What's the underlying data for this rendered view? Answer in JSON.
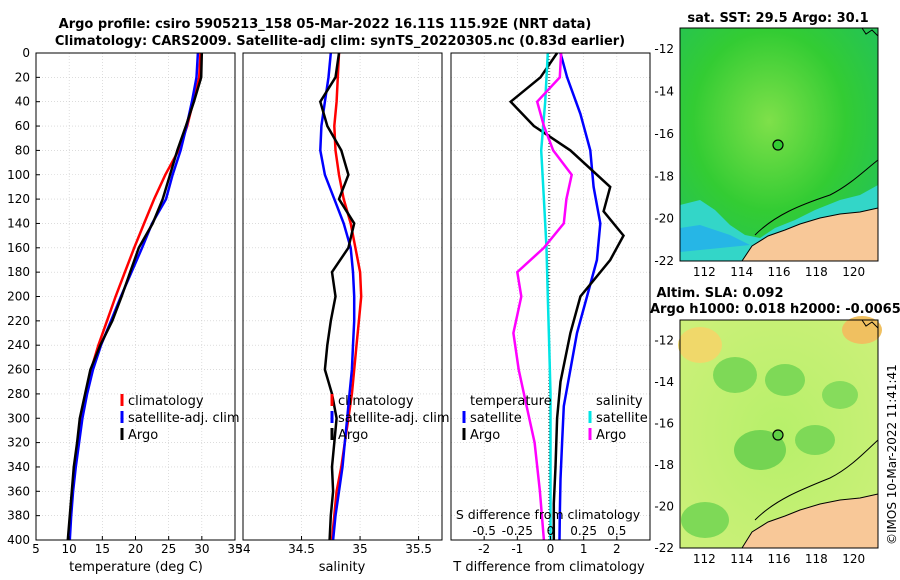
{
  "title": {
    "line1": "Argo profile: csiro 5905213_158 05-Mar-2022 16.11S 115.92E (NRT data)",
    "line2": "Climatology: CARS2009. Satellite-adj clim: synTS_20220305.nc (0.83d earlier)"
  },
  "colors": {
    "climatology": "#ff0000",
    "satellite": "#0000ff",
    "argo": "#000000",
    "sal_sat": "#00e5e5",
    "sal_argo": "#ff00ff"
  },
  "chart_data": [
    {
      "type": "line",
      "name": "temperature",
      "xlabel": "temperature (deg C)",
      "xlim": [
        5,
        35
      ],
      "ylim": [
        0,
        400
      ],
      "xticks": [
        "5",
        "10",
        "15",
        "20",
        "25",
        "30",
        "35"
      ],
      "yticks": [
        "0",
        "20",
        "40",
        "60",
        "80",
        "100",
        "120",
        "140",
        "160",
        "180",
        "200",
        "220",
        "240",
        "260",
        "280",
        "300",
        "320",
        "340",
        "360",
        "380",
        "400"
      ],
      "legend": [
        "climatology",
        "satellite-adj. clim",
        "Argo"
      ],
      "series": [
        {
          "name": "climatology",
          "color": "#ff0000",
          "points": [
            [
              29.8,
              0
            ],
            [
              29.6,
              20
            ],
            [
              28.7,
              40
            ],
            [
              27.8,
              60
            ],
            [
              26.5,
              80
            ],
            [
              24.5,
              100
            ],
            [
              22.8,
              120
            ],
            [
              21.3,
              140
            ],
            [
              19.8,
              160
            ],
            [
              18.4,
              180
            ],
            [
              17.0,
              200
            ],
            [
              15.7,
              220
            ],
            [
              14.4,
              240
            ],
            [
              13.3,
              260
            ],
            [
              12.5,
              280
            ],
            [
              11.8,
              300
            ],
            [
              11.3,
              320
            ],
            [
              10.9,
              340
            ],
            [
              10.5,
              360
            ],
            [
              10.2,
              380
            ],
            [
              9.9,
              400
            ]
          ]
        },
        {
          "name": "satellite-adj. clim",
          "color": "#0000ff",
          "points": [
            [
              29.4,
              0
            ],
            [
              29.2,
              20
            ],
            [
              28.5,
              40
            ],
            [
              27.7,
              60
            ],
            [
              26.8,
              80
            ],
            [
              25.6,
              100
            ],
            [
              24.6,
              120
            ],
            [
              22.5,
              140
            ],
            [
              21.0,
              160
            ],
            [
              19.4,
              180
            ],
            [
              17.8,
              200
            ],
            [
              16.3,
              220
            ],
            [
              14.8,
              240
            ],
            [
              13.6,
              260
            ],
            [
              12.7,
              280
            ],
            [
              12.0,
              300
            ],
            [
              11.5,
              320
            ],
            [
              11.0,
              340
            ],
            [
              10.6,
              360
            ],
            [
              10.3,
              380
            ],
            [
              10.1,
              400
            ]
          ]
        },
        {
          "name": "Argo",
          "color": "#000000",
          "points": [
            [
              30.0,
              0
            ],
            [
              29.9,
              20
            ],
            [
              28.8,
              40
            ],
            [
              27.6,
              60
            ],
            [
              26.3,
              80
            ],
            [
              25.2,
              100
            ],
            [
              24.1,
              120
            ],
            [
              22.6,
              140
            ],
            [
              20.5,
              160
            ],
            [
              19.2,
              180
            ],
            [
              17.9,
              200
            ],
            [
              16.5,
              220
            ],
            [
              14.7,
              240
            ],
            [
              13.2,
              260
            ],
            [
              12.4,
              280
            ],
            [
              11.6,
              300
            ],
            [
              11.2,
              320
            ],
            [
              10.7,
              340
            ],
            [
              10.4,
              360
            ],
            [
              10.1,
              380
            ],
            [
              9.8,
              400
            ]
          ]
        }
      ]
    },
    {
      "type": "line",
      "name": "salinity",
      "xlabel": "salinity",
      "xlim": [
        34,
        35.7
      ],
      "ylim": [
        0,
        400
      ],
      "xticks": [
        "34",
        "34.5",
        "35",
        "35.5"
      ],
      "legend": [
        "climatology",
        "satellite-adj. clim",
        "Argo"
      ],
      "series": [
        {
          "name": "climatology",
          "color": "#ff0000",
          "points": [
            [
              34.82,
              0
            ],
            [
              34.81,
              20
            ],
            [
              34.8,
              40
            ],
            [
              34.78,
              60
            ],
            [
              34.79,
              80
            ],
            [
              34.82,
              100
            ],
            [
              34.86,
              120
            ],
            [
              34.92,
              140
            ],
            [
              34.96,
              160
            ],
            [
              35.0,
              180
            ],
            [
              35.01,
              200
            ],
            [
              34.99,
              220
            ],
            [
              34.97,
              240
            ],
            [
              34.95,
              260
            ],
            [
              34.93,
              280
            ],
            [
              34.9,
              300
            ],
            [
              34.87,
              320
            ],
            [
              34.84,
              340
            ],
            [
              34.8,
              360
            ],
            [
              34.78,
              380
            ],
            [
              34.76,
              400
            ]
          ]
        },
        {
          "name": "satellite-adj. clim",
          "color": "#0000ff",
          "points": [
            [
              34.75,
              0
            ],
            [
              34.73,
              20
            ],
            [
              34.7,
              40
            ],
            [
              34.67,
              60
            ],
            [
              34.66,
              80
            ],
            [
              34.7,
              100
            ],
            [
              34.78,
              120
            ],
            [
              34.86,
              140
            ],
            [
              34.92,
              160
            ],
            [
              34.94,
              180
            ],
            [
              34.95,
              200
            ],
            [
              34.95,
              220
            ],
            [
              34.94,
              240
            ],
            [
              34.93,
              260
            ],
            [
              34.91,
              280
            ],
            [
              34.89,
              300
            ],
            [
              34.87,
              320
            ],
            [
              34.85,
              340
            ],
            [
              34.82,
              360
            ],
            [
              34.79,
              380
            ],
            [
              34.77,
              400
            ]
          ]
        },
        {
          "name": "Argo",
          "color": "#000000",
          "points": [
            [
              34.82,
              0
            ],
            [
              34.79,
              20
            ],
            [
              34.66,
              40
            ],
            [
              34.72,
              60
            ],
            [
              34.84,
              80
            ],
            [
              34.9,
              100
            ],
            [
              34.82,
              120
            ],
            [
              34.95,
              140
            ],
            [
              34.9,
              160
            ],
            [
              34.76,
              180
            ],
            [
              34.79,
              200
            ],
            [
              34.75,
              220
            ],
            [
              34.72,
              240
            ],
            [
              34.7,
              260
            ],
            [
              34.76,
              280
            ],
            [
              34.8,
              300
            ],
            [
              34.78,
              320
            ],
            [
              34.76,
              340
            ],
            [
              34.77,
              360
            ],
            [
              34.75,
              380
            ],
            [
              34.74,
              400
            ]
          ]
        }
      ]
    },
    {
      "type": "line",
      "name": "difference",
      "xlabel": "T difference from climatology",
      "xlabel_top": "S difference from climatology",
      "xlim": [
        -3,
        3
      ],
      "ylim": [
        0,
        400
      ],
      "xticks": [
        "-2",
        "-1",
        "0",
        "1",
        "2"
      ],
      "sticks": [
        "-0.5",
        "-0.25",
        "0",
        "0.25",
        "0.5"
      ],
      "legend_temperature_title": "temperature",
      "legend_salinity_title": "salinity",
      "legend_items": [
        "satellite",
        "Argo",
        "satellite",
        "Argo"
      ],
      "series": [
        {
          "name": "T satellite",
          "color": "#0000ff",
          "points": [
            [
              0.3,
              0
            ],
            [
              0.5,
              20
            ],
            [
              0.9,
              50
            ],
            [
              1.2,
              80
            ],
            [
              1.3,
              110
            ],
            [
              1.5,
              140
            ],
            [
              1.4,
              170
            ],
            [
              1.1,
              200
            ],
            [
              0.8,
              230
            ],
            [
              0.6,
              260
            ],
            [
              0.4,
              290
            ],
            [
              0.35,
              320
            ],
            [
              0.3,
              350
            ],
            [
              0.28,
              380
            ],
            [
              0.27,
              400
            ]
          ]
        },
        {
          "name": "T Argo",
          "color": "#000000",
          "points": [
            [
              0.2,
              0
            ],
            [
              -0.3,
              20
            ],
            [
              -1.2,
              40
            ],
            [
              -0.5,
              60
            ],
            [
              0.6,
              80
            ],
            [
              1.8,
              110
            ],
            [
              1.6,
              130
            ],
            [
              2.2,
              150
            ],
            [
              1.8,
              170
            ],
            [
              0.9,
              200
            ],
            [
              0.6,
              230
            ],
            [
              0.3,
              270
            ],
            [
              0.2,
              300
            ],
            [
              0.15,
              340
            ],
            [
              0.1,
              370
            ],
            [
              0.1,
              400
            ]
          ]
        },
        {
          "name": "S satellite",
          "color": "#00e5e5",
          "points": [
            [
              -0.02,
              0
            ],
            [
              -0.04,
              40
            ],
            [
              -0.07,
              80
            ],
            [
              -0.05,
              120
            ],
            [
              -0.03,
              160
            ],
            [
              -0.02,
              200
            ],
            [
              -0.01,
              240
            ],
            [
              0.0,
              280
            ],
            [
              0.0,
              320
            ],
            [
              0.0,
              360
            ],
            [
              0.0,
              400
            ]
          ]
        },
        {
          "name": "S Argo",
          "color": "#ff00ff",
          "points": [
            [
              0.08,
              0
            ],
            [
              0.07,
              20
            ],
            [
              -0.1,
              40
            ],
            [
              -0.05,
              60
            ],
            [
              0.02,
              80
            ],
            [
              0.16,
              100
            ],
            [
              0.12,
              120
            ],
            [
              0.1,
              140
            ],
            [
              -0.05,
              160
            ],
            [
              -0.25,
              180
            ],
            [
              -0.22,
              200
            ],
            [
              -0.28,
              230
            ],
            [
              -0.24,
              260
            ],
            [
              -0.18,
              290
            ],
            [
              -0.12,
              320
            ],
            [
              -0.08,
              360
            ],
            [
              -0.05,
              400
            ]
          ]
        }
      ]
    }
  ],
  "maps": [
    {
      "title": "sat. SST: 29.5 Argo: 30.1",
      "yticks": [
        "-12",
        "-14",
        "-16",
        "-18",
        "-20",
        "-22"
      ],
      "xticks": [
        "112",
        "114",
        "116",
        "118",
        "120"
      ]
    },
    {
      "title1": "Altim. SLA: 0.092",
      "title2": "Argo h1000: 0.018 h2000: -0.0065",
      "yticks": [
        "-12",
        "-14",
        "-16",
        "-18",
        "-20",
        "-22"
      ],
      "xticks": [
        "112",
        "114",
        "116",
        "118",
        "120"
      ]
    }
  ],
  "stamp": "©IMOS 10-Mar-2022 11:41:41"
}
